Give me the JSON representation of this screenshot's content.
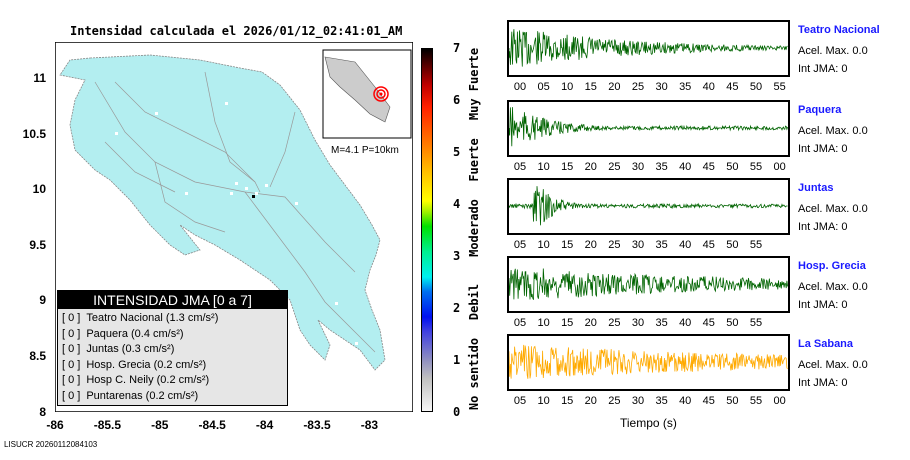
{
  "title": "Intensidad calculada el 2026/01/12_02:41:01_AM",
  "map": {
    "lon_ticks": [
      "-86",
      "-85.5",
      "-85",
      "-84.5",
      "-84",
      "-83.5",
      "-83"
    ],
    "lat_ticks": [
      "11",
      "10.5",
      "10",
      "9.5",
      "9",
      "8.5",
      "8"
    ],
    "land_color": "#b3eef0",
    "inset_label": "M=4.1 P=10km"
  },
  "legend": {
    "title": "INTENSIDAD JMA [0 a 7]",
    "rows": [
      {
        "int": "[ 0 ]",
        "name": "Teatro Nacional (1.3 cm/s²)"
      },
      {
        "int": "[ 0 ]",
        "name": "Paquera (0.4 cm/s²)"
      },
      {
        "int": "[ 0 ]",
        "name": "Juntas (0.3 cm/s²)"
      },
      {
        "int": "[ 0 ]",
        "name": "Hosp. Grecia (0.2 cm/s²)"
      },
      {
        "int": "[ 0 ]",
        "name": "Hosp C. Neily (0.2 cm/s²)"
      },
      {
        "int": "[ 0 ]",
        "name": "Puntarenas (0.2 cm/s²)"
      }
    ]
  },
  "colorbar": {
    "ticks": [
      "0",
      "1",
      "2",
      "3",
      "4",
      "5",
      "6",
      "7"
    ],
    "labels": [
      "No sentido",
      "Debil",
      "Moderado",
      "Fuerte",
      "Muy Fuerte"
    ]
  },
  "stations": [
    {
      "name": "Teatro Nacional",
      "acel": "Acel. Max. 0.0",
      "int": "Int JMA: 0",
      "color": "#006400",
      "ticks": [
        "00",
        "05",
        "10",
        "15",
        "20",
        "25",
        "30",
        "35",
        "40",
        "45",
        "50",
        "55"
      ],
      "offset": 0,
      "decay": 0.04
    },
    {
      "name": "Paquera",
      "acel": "Acel. Max. 0.0",
      "int": "Int JMA: 0",
      "color": "#006400",
      "ticks": [
        "05",
        "10",
        "15",
        "20",
        "25",
        "30",
        "35",
        "40",
        "45",
        "50",
        "55",
        "00"
      ],
      "offset": 1,
      "decay": 0.12
    },
    {
      "name": "Juntas",
      "acel": "Acel. Max. 0.0",
      "int": "Int JMA: 0",
      "color": "#006400",
      "ticks": [
        "05",
        "10",
        "15",
        "20",
        "25",
        "30",
        "35",
        "40",
        "45",
        "50",
        "55"
      ],
      "offset": 1,
      "decay": 0.25
    },
    {
      "name": "Hosp. Grecia",
      "acel": "Acel. Max. 0.0",
      "int": "Int JMA: 0",
      "color": "#006400",
      "ticks": [
        "05",
        "10",
        "15",
        "20",
        "25",
        "30",
        "35",
        "40",
        "45",
        "50",
        "55"
      ],
      "offset": 1,
      "decay": 0.02
    },
    {
      "name": "La Sabana",
      "acel": "Acel. Max. 0.0",
      "int": "Int JMA: 0",
      "color": "#ffaa00",
      "ticks": [
        "05",
        "10",
        "15",
        "20",
        "25",
        "30",
        "35",
        "40",
        "45",
        "50",
        "55",
        "00"
      ],
      "offset": 1,
      "decay": 0.015
    }
  ],
  "xlabel": "Tiempo (s)",
  "footer": "LISUCR 20260112084103"
}
